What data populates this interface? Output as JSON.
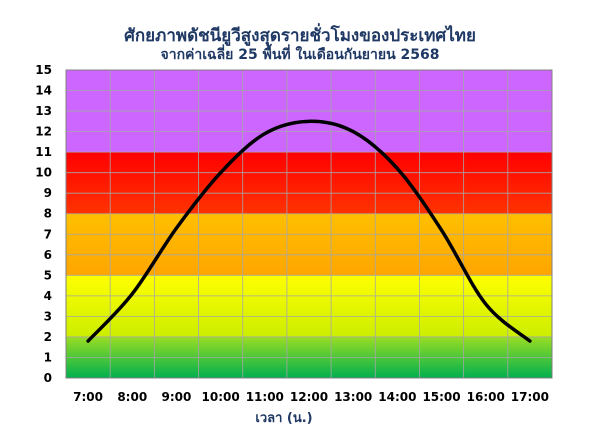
{
  "chart_data": {
    "type": "line",
    "title": "ศักยภาพดัชนียูวีสูงสุดรายชั่วโมงของประเทศไทย",
    "subtitle": "จากค่าเฉลี่ย 25 พื้นที่ ในเดือนกันยายน 2568",
    "xlabel": "เวลา (น.)",
    "ylabel": "",
    "categories": [
      "7:00",
      "8:00",
      "9:00",
      "10:00",
      "11:00",
      "12:00",
      "13:00",
      "14:00",
      "15:00",
      "16:00",
      "17:00"
    ],
    "series": [
      {
        "values": [
          1.8,
          4.1,
          7.3,
          10.0,
          11.9,
          12.5,
          12.0,
          10.2,
          7.2,
          3.6,
          1.8
        ]
      }
    ],
    "ylim": [
      0,
      15
    ],
    "yticks": [
      0,
      1,
      2,
      3,
      4,
      5,
      6,
      7,
      8,
      9,
      10,
      11,
      12,
      13,
      14,
      15
    ],
    "grid": true,
    "legend": "none",
    "bands": [
      {
        "from": 0,
        "to": 2,
        "color_top": "#99dd22",
        "color_bottom": "#00b050"
      },
      {
        "from": 2,
        "to": 5,
        "color_top": "#ffff00",
        "color_bottom": "#ccee00"
      },
      {
        "from": 5,
        "to": 8,
        "color_top": "#ffc000",
        "color_bottom": "#ffa500"
      },
      {
        "from": 8,
        "to": 11,
        "color_top": "#ff0000",
        "color_bottom": "#ff3300"
      },
      {
        "from": 11,
        "to": 15,
        "color_top": "#cc66ff",
        "color_bottom": "#cc66ff"
      }
    ],
    "line_color": "#000000"
  }
}
